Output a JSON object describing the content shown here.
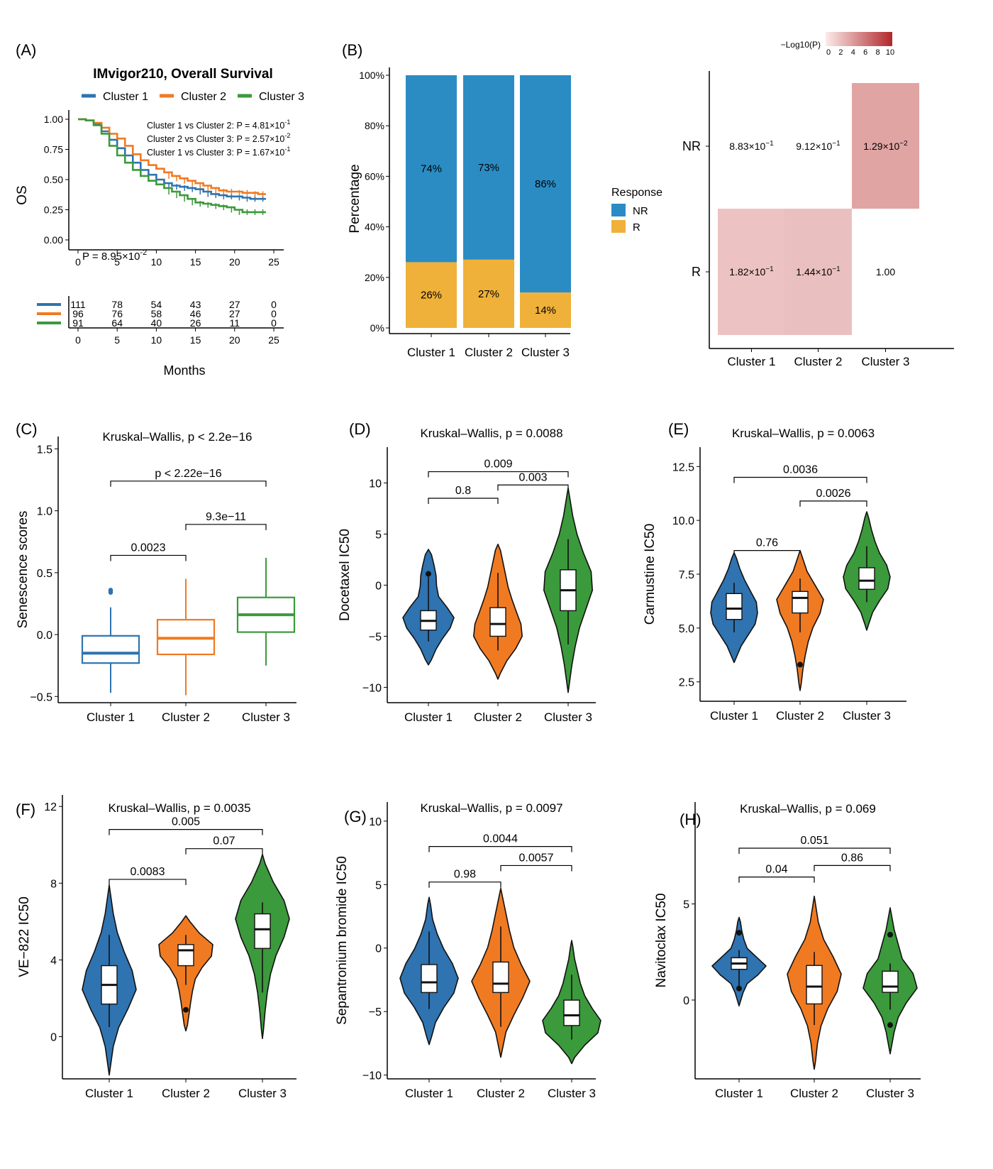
{
  "colors": {
    "c1": "#2f73b0",
    "c2": "#f07a22",
    "c3": "#3b9a3b",
    "NR": "#2b8cc4",
    "R": "#efb13a"
  },
  "panels": {
    "A": {
      "tag": "(A)"
    },
    "B": {
      "tag": "(B)"
    },
    "C": {
      "tag": "(C)"
    },
    "D": {
      "tag": "(D)"
    },
    "E": {
      "tag": "(E)"
    },
    "F": {
      "tag": "(F)"
    },
    "G": {
      "tag": "(G)"
    },
    "H": {
      "tag": "(H)"
    }
  },
  "chart_data": [
    {
      "id": "A",
      "type": "line",
      "title": "IMvigor210, Overall Survival",
      "ylabel": "OS",
      "xlabel": "Months",
      "xlim": [
        0,
        25
      ],
      "ylim": [
        0,
        1
      ],
      "xticks": [
        "0",
        "5",
        "10",
        "15",
        "20",
        "25"
      ],
      "yticks": [
        "0.00",
        "0.25",
        "0.50",
        "0.75",
        "1.00"
      ],
      "legend": [
        "Cluster 1",
        "Cluster 2",
        "Cluster 3"
      ],
      "annotations": {
        "c12_label": "Cluster 1 vs Cluster 2: ",
        "c12_p": "P = 4.81×10",
        "c12_exp": "-1",
        "c23_label": "Cluster 2 vs Cluster 3: ",
        "c23_p": "P = 2.57×10",
        "c23_exp": "-2",
        "c13_label": "Cluster 1 vs Cluster 3: ",
        "c13_p": "P = 1.67×10",
        "c13_exp": "-1",
        "overall": "P = 8.95×10",
        "overall_exp": "-2"
      },
      "series": [
        {
          "name": "Cluster 1",
          "x": [
            0,
            1,
            2,
            3,
            4,
            5,
            6,
            7,
            8,
            9,
            10,
            11,
            12,
            13,
            14,
            15,
            16,
            17,
            18,
            19,
            20,
            21,
            22,
            23,
            24
          ],
          "y": [
            1.0,
            0.99,
            0.96,
            0.9,
            0.83,
            0.76,
            0.7,
            0.64,
            0.58,
            0.54,
            0.5,
            0.47,
            0.45,
            0.44,
            0.43,
            0.42,
            0.4,
            0.38,
            0.37,
            0.36,
            0.36,
            0.35,
            0.34,
            0.34,
            0.34
          ]
        },
        {
          "name": "Cluster 2",
          "x": [
            0,
            1,
            2,
            3,
            4,
            5,
            6,
            7,
            8,
            9,
            10,
            11,
            12,
            13,
            14,
            15,
            16,
            17,
            18,
            19,
            20,
            21,
            22,
            23,
            24
          ],
          "y": [
            1.0,
            0.99,
            0.97,
            0.93,
            0.88,
            0.84,
            0.78,
            0.71,
            0.66,
            0.62,
            0.59,
            0.56,
            0.53,
            0.51,
            0.49,
            0.47,
            0.45,
            0.43,
            0.41,
            0.4,
            0.4,
            0.39,
            0.39,
            0.38,
            0.38
          ]
        },
        {
          "name": "Cluster 3",
          "x": [
            0,
            1,
            2,
            3,
            4,
            5,
            6,
            7,
            8,
            9,
            10,
            11,
            12,
            13,
            14,
            15,
            16,
            17,
            18,
            19,
            20,
            21,
            22,
            23,
            24
          ],
          "y": [
            1.0,
            0.99,
            0.95,
            0.88,
            0.78,
            0.7,
            0.64,
            0.58,
            0.53,
            0.49,
            0.46,
            0.43,
            0.4,
            0.37,
            0.34,
            0.31,
            0.3,
            0.29,
            0.28,
            0.27,
            0.25,
            0.23,
            0.23,
            0.23,
            0.23
          ]
        }
      ],
      "risk_table": {
        "x": [
          0,
          5,
          10,
          15,
          20,
          25
        ],
        "rows": [
          [
            "111",
            "78",
            "54",
            "43",
            "27",
            "0"
          ],
          [
            "96",
            "76",
            "58",
            "46",
            "27",
            "0"
          ],
          [
            "91",
            "64",
            "40",
            "26",
            "11",
            "0"
          ]
        ]
      }
    },
    {
      "id": "B1",
      "type": "bar",
      "stacked": true,
      "ylabel": "Percentage",
      "categories": [
        "Cluster 1",
        "Cluster 2",
        "Cluster 3"
      ],
      "yticks": [
        "0%",
        "20%",
        "40%",
        "60%",
        "80%",
        "100%"
      ],
      "legend_title": "Response",
      "series": [
        {
          "name": "NR",
          "values": [
            74,
            73,
            86
          ],
          "labels": [
            "74%",
            "73%",
            "86%"
          ]
        },
        {
          "name": "R",
          "values": [
            26,
            27,
            14
          ],
          "labels": [
            "26%",
            "27%",
            "14%"
          ]
        }
      ]
    },
    {
      "id": "B2",
      "type": "heatmap",
      "legend_title": "−Log10(P)",
      "legend_ticks": [
        "0",
        "2",
        "4",
        "6",
        "8",
        "10"
      ],
      "range": [
        0,
        10
      ],
      "categories": [
        "Cluster 1",
        "Cluster 2",
        "Cluster 3"
      ],
      "rows": [
        "NR",
        "R"
      ],
      "cells": [
        {
          "row": "NR",
          "col": "Cluster 1",
          "mant": "8.83×10",
          "exp": "−1",
          "value": 0.054
        },
        {
          "row": "NR",
          "col": "Cluster 2",
          "mant": "9.12×10",
          "exp": "−1",
          "value": 0.04
        },
        {
          "row": "NR",
          "col": "Cluster 3",
          "mant": "1.29×10",
          "exp": "−2",
          "value": 1.889
        },
        {
          "row": "R",
          "col": "Cluster 1",
          "mant": "1.82×10",
          "exp": "−1",
          "value": 0.74
        },
        {
          "row": "R",
          "col": "Cluster 2",
          "mant": "1.44×10",
          "exp": "−1",
          "value": 0.842
        },
        {
          "row": "R",
          "col": "Cluster 3",
          "mant": "1.00",
          "exp": "",
          "value": 0
        }
      ]
    },
    {
      "id": "C",
      "type": "box",
      "title": "Kruskal–Wallis, p < 2.2e−16",
      "ylabel": "Senescence scores",
      "categories": [
        "Cluster 1",
        "Cluster 2",
        "Cluster 3"
      ],
      "ylim": [
        -0.55,
        1.6
      ],
      "yticks": [
        -0.5,
        0.0,
        0.5,
        1.0,
        1.5
      ],
      "yticklabels": [
        "−0.5",
        "0.0",
        "0.5",
        "1.0",
        "1.5"
      ],
      "boxes": [
        {
          "min": -0.47,
          "q1": -0.23,
          "median": -0.15,
          "q3": -0.01,
          "max": 0.22,
          "outliers": [
            0.34,
            0.35,
            0.36
          ]
        },
        {
          "min": -0.49,
          "q1": -0.16,
          "median": -0.03,
          "q3": 0.12,
          "max": 0.45,
          "outliers": []
        },
        {
          "min": -0.25,
          "q1": 0.02,
          "median": 0.16,
          "q3": 0.3,
          "max": 0.62,
          "outliers": []
        }
      ],
      "comparisons": [
        {
          "from": 0,
          "to": 1,
          "y": 0.64,
          "label": "0.0023"
        },
        {
          "from": 1,
          "to": 2,
          "y": 0.89,
          "label": "9.3e−11"
        },
        {
          "from": 0,
          "to": 2,
          "y": 1.24,
          "label": "p < 2.22e−16"
        }
      ]
    },
    {
      "id": "D",
      "type": "violin",
      "title": "Kruskal–Wallis, p = 0.0088",
      "ylabel": "Docetaxel IC50",
      "categories": [
        "Cluster 1",
        "Cluster 2",
        "Cluster 3"
      ],
      "ylim": [
        -11.5,
        13.5
      ],
      "yticks": [
        -10,
        -5,
        0,
        5,
        10
      ],
      "yticklabels": [
        "−10",
        "−5",
        "0",
        "5",
        "10"
      ],
      "violins": [
        {
          "min": -7.8,
          "max": 3.5,
          "q1": -4.4,
          "median": -3.5,
          "q3": -2.5,
          "wlo": -5.5,
          "whi": 0.8,
          "outliers": [
            1.1
          ],
          "profile": [
            0.12,
            0.3,
            0.55,
            0.85,
            1.0,
            0.72,
            0.4,
            0.32,
            0.3,
            0.22,
            0.12
          ]
        },
        {
          "min": -9.2,
          "max": 4.0,
          "q1": -5.0,
          "median": -3.8,
          "q3": -2.2,
          "wlo": -6.4,
          "whi": 1.2,
          "outliers": [],
          "profile": [
            0.1,
            0.35,
            0.7,
            0.95,
            0.9,
            0.72,
            0.55,
            0.4,
            0.3,
            0.2,
            0.1
          ]
        },
        {
          "min": -10.5,
          "max": 9.5,
          "q1": -2.5,
          "median": -0.5,
          "q3": 1.5,
          "wlo": -5.8,
          "whi": 4.5,
          "outliers": [],
          "profile": [
            0.05,
            0.15,
            0.28,
            0.45,
            0.7,
            0.95,
            0.9,
            0.6,
            0.35,
            0.18,
            0.06
          ]
        }
      ],
      "comparisons": [
        {
          "from": 0,
          "to": 1,
          "y": 8.5,
          "label": "0.8"
        },
        {
          "from": 1,
          "to": 2,
          "y": 9.8,
          "label": "0.003"
        },
        {
          "from": 0,
          "to": 2,
          "y": 11.1,
          "label": "0.009"
        }
      ]
    },
    {
      "id": "E",
      "type": "violin",
      "title": "Kruskal–Wallis, p = 0.0063",
      "ylabel": "Carmustine IC50",
      "categories": [
        "Cluster 1",
        "Cluster 2",
        "Cluster 3"
      ],
      "ylim": [
        1.6,
        13.4
      ],
      "yticks": [
        2.5,
        5.0,
        7.5,
        10.0,
        12.5
      ],
      "yticklabels": [
        "2.5",
        "5.0",
        "7.5",
        "10.0",
        "12.5"
      ],
      "violins": [
        {
          "min": 3.4,
          "max": 8.5,
          "q1": 5.4,
          "median": 5.9,
          "q3": 6.6,
          "wlo": 4.8,
          "whi": 7.1,
          "outliers": [],
          "profile": [
            0.1,
            0.3,
            0.6,
            0.9,
            1.0,
            0.95,
            0.7,
            0.45,
            0.25,
            0.1
          ]
        },
        {
          "min": 2.1,
          "max": 8.6,
          "q1": 5.7,
          "median": 6.4,
          "q3": 6.7,
          "wlo": 4.8,
          "whi": 7.3,
          "outliers": [
            3.3
          ],
          "profile": [
            0.05,
            0.12,
            0.22,
            0.35,
            0.55,
            0.85,
            1.0,
            0.65,
            0.3,
            0.1
          ]
        },
        {
          "min": 4.9,
          "max": 10.4,
          "q1": 6.8,
          "median": 7.2,
          "q3": 7.8,
          "wlo": 6.2,
          "whi": 8.8,
          "outliers": [],
          "profile": [
            0.08,
            0.25,
            0.55,
            0.9,
            1.0,
            0.85,
            0.55,
            0.35,
            0.2,
            0.08
          ]
        }
      ],
      "comparisons": [
        {
          "from": 0,
          "to": 1,
          "y": 8.6,
          "label": "0.76"
        },
        {
          "from": 1,
          "to": 2,
          "y": 10.9,
          "label": "0.0026"
        },
        {
          "from": 0,
          "to": 2,
          "y": 12.0,
          "label": "0.0036"
        }
      ]
    },
    {
      "id": "F",
      "type": "violin",
      "title": "Kruskal–Wallis, p = 0.0035",
      "ylabel": "VE−822 IC50",
      "categories": [
        "Cluster 1",
        "Cluster 2",
        "Cluster 3"
      ],
      "ylim": [
        -2.2,
        12.6
      ],
      "yticks": [
        0,
        4,
        8,
        12
      ],
      "yticklabels": [
        "0",
        "4",
        "8",
        "12"
      ],
      "violins": [
        {
          "min": -2.0,
          "max": 7.9,
          "q1": 1.7,
          "median": 2.7,
          "q3": 3.7,
          "wlo": 0.5,
          "whi": 5.3,
          "outliers": [],
          "profile": [
            0.05,
            0.15,
            0.35,
            0.7,
            1.0,
            0.85,
            0.55,
            0.3,
            0.15,
            0.05
          ]
        },
        {
          "min": 0.3,
          "max": 6.3,
          "q1": 3.7,
          "median": 4.5,
          "q3": 4.8,
          "wlo": 2.7,
          "whi": 5.3,
          "outliers": [
            1.4
          ],
          "profile": [
            0.06,
            0.12,
            0.18,
            0.25,
            0.35,
            0.6,
            0.95,
            1.0,
            0.5,
            0.15
          ]
        },
        {
          "min": -0.1,
          "max": 9.5,
          "q1": 4.6,
          "median": 5.6,
          "q3": 6.4,
          "wlo": 2.3,
          "whi": 7.0,
          "outliers": [],
          "profile": [
            0.04,
            0.1,
            0.18,
            0.3,
            0.5,
            0.8,
            1.0,
            0.8,
            0.4,
            0.1
          ]
        }
      ],
      "comparisons": [
        {
          "from": 0,
          "to": 1,
          "y": 8.2,
          "label": "0.0083"
        },
        {
          "from": 1,
          "to": 2,
          "y": 9.8,
          "label": "0.07"
        },
        {
          "from": 0,
          "to": 2,
          "y": 10.8,
          "label": "0.005"
        }
      ]
    },
    {
      "id": "G",
      "type": "violin",
      "title": "Kruskal–Wallis, p = 0.0097",
      "ylabel": "Sepantronium bromide IC50",
      "categories": [
        "Cluster 1",
        "Cluster 2",
        "Cluster 3"
      ],
      "ylim": [
        -10.3,
        11.5
      ],
      "yticks": [
        -10,
        -5,
        0,
        5,
        10
      ],
      "yticklabels": [
        "−10",
        "−5",
        "0",
        "5",
        "10"
      ],
      "violins": [
        {
          "min": -7.6,
          "max": 4.0,
          "q1": -3.5,
          "median": -2.7,
          "q3": -1.3,
          "wlo": -4.8,
          "whi": 1.3,
          "outliers": [],
          "profile": [
            0.08,
            0.22,
            0.5,
            0.85,
            1.0,
            0.8,
            0.5,
            0.28,
            0.12,
            0.05
          ]
        },
        {
          "min": -8.6,
          "max": 4.7,
          "q1": -3.5,
          "median": -2.8,
          "q3": -1.1,
          "wlo": -6.2,
          "whi": 1.7,
          "outliers": [],
          "profile": [
            0.06,
            0.18,
            0.45,
            0.75,
            1.0,
            0.7,
            0.45,
            0.3,
            0.18,
            0.06
          ]
        },
        {
          "min": -9.1,
          "max": 0.6,
          "q1": -6.1,
          "median": -5.3,
          "q3": -4.1,
          "wlo": -7.2,
          "whi": -2.1,
          "outliers": [],
          "profile": [
            0.1,
            0.45,
            0.9,
            1.0,
            0.7,
            0.45,
            0.3,
            0.2,
            0.1,
            0.04
          ]
        }
      ],
      "comparisons": [
        {
          "from": 0,
          "to": 1,
          "y": 5.2,
          "label": "0.98"
        },
        {
          "from": 1,
          "to": 2,
          "y": 6.5,
          "label": "0.0057"
        },
        {
          "from": 0,
          "to": 2,
          "y": 8.0,
          "label": "0.0044"
        }
      ]
    },
    {
      "id": "H",
      "type": "violin",
      "title": "Kruskal–Wallis, p = 0.069",
      "ylabel": "Navitoclax IC50",
      "categories": [
        "Cluster 1",
        "Cluster 2",
        "Cluster 3"
      ],
      "ylim": [
        -4.1,
        10.3
      ],
      "yticks": [
        0,
        5
      ],
      "yticklabels": [
        "0",
        "5"
      ],
      "violins": [
        {
          "min": -0.3,
          "max": 4.3,
          "q1": 1.6,
          "median": 1.9,
          "q3": 2.2,
          "wlo": 0.5,
          "whi": 2.6,
          "outliers": [
            0.6,
            3.5
          ],
          "profile": [
            0.05,
            0.15,
            0.3,
            0.7,
            1.0,
            0.65,
            0.3,
            0.18,
            0.1,
            0.05
          ]
        },
        {
          "min": -3.6,
          "max": 5.4,
          "q1": -0.2,
          "median": 0.7,
          "q3": 1.8,
          "wlo": -1.3,
          "whi": 2.5,
          "outliers": [],
          "profile": [
            0.05,
            0.12,
            0.25,
            0.5,
            0.85,
            1.0,
            0.7,
            0.35,
            0.15,
            0.05
          ]
        },
        {
          "min": -2.8,
          "max": 4.8,
          "q1": 0.4,
          "median": 0.7,
          "q3": 1.5,
          "wlo": -0.5,
          "whi": 1.9,
          "outliers": [
            -1.3,
            3.4
          ],
          "profile": [
            0.05,
            0.15,
            0.3,
            0.6,
            1.0,
            0.85,
            0.45,
            0.3,
            0.15,
            0.05
          ]
        }
      ],
      "comparisons": [
        {
          "from": 1,
          "to": 2,
          "y": 7.0,
          "label": "0.86"
        },
        {
          "from": 0,
          "to": 1,
          "y": 6.4,
          "label": "0.04"
        },
        {
          "from": 0,
          "to": 2,
          "y": 7.9,
          "label": "0.051"
        }
      ]
    }
  ]
}
